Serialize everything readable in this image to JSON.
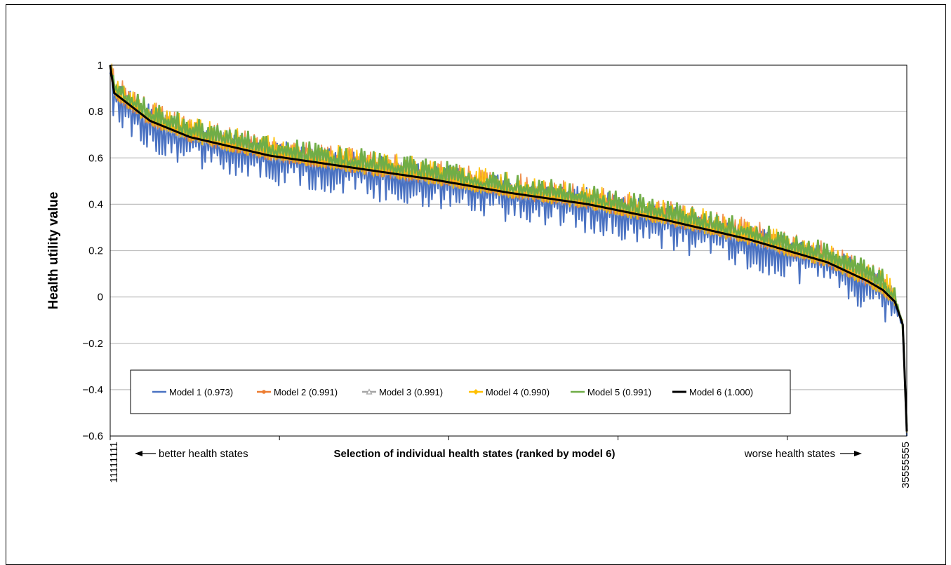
{
  "chart_data": {
    "type": "line",
    "title": "",
    "xlabel": "Selection of individual health states (ranked by model 6)",
    "ylabel": "Health utility value",
    "ylim": [
      -0.6,
      1
    ],
    "yticks": [
      "1",
      "0.8",
      "0.6",
      "0.4",
      "0.2",
      "0",
      "−0.2",
      "−0.4",
      "−0.6"
    ],
    "x_first_label": "11111111",
    "x_last_label": "35555555",
    "annotation_left": "better health states",
    "annotation_right": "worse health states",
    "grid": true,
    "legend_position": "lower-left, inside plot",
    "series": [
      {
        "name": "Model 1 (0.973)",
        "color": "#4a72c2",
        "marker": "none"
      },
      {
        "name": "Model 2 (0.991)",
        "color": "#ed7d31",
        "marker": "circle"
      },
      {
        "name": "Model 3 (0.991)",
        "color": "#a5a5a5",
        "marker": "triangle"
      },
      {
        "name": "Model 4 (0.990)",
        "color": "#ffc000",
        "marker": "diamond"
      },
      {
        "name": "Model 5 (0.991)",
        "color": "#70ad47",
        "marker": "none"
      },
      {
        "name": "Model 6 (1.000)",
        "color": "#000000",
        "marker": "none"
      }
    ],
    "model6_curve": {
      "x_fraction": [
        0,
        0.005,
        0.02,
        0.05,
        0.1,
        0.15,
        0.2,
        0.3,
        0.4,
        0.5,
        0.6,
        0.7,
        0.8,
        0.85,
        0.9,
        0.95,
        0.97,
        0.985,
        0.995,
        1.0
      ],
      "y": [
        1.0,
        0.88,
        0.84,
        0.76,
        0.69,
        0.65,
        0.61,
        0.56,
        0.51,
        0.45,
        0.4,
        0.33,
        0.25,
        0.2,
        0.15,
        0.07,
        0.03,
        -0.02,
        -0.12,
        -0.58
      ]
    }
  }
}
